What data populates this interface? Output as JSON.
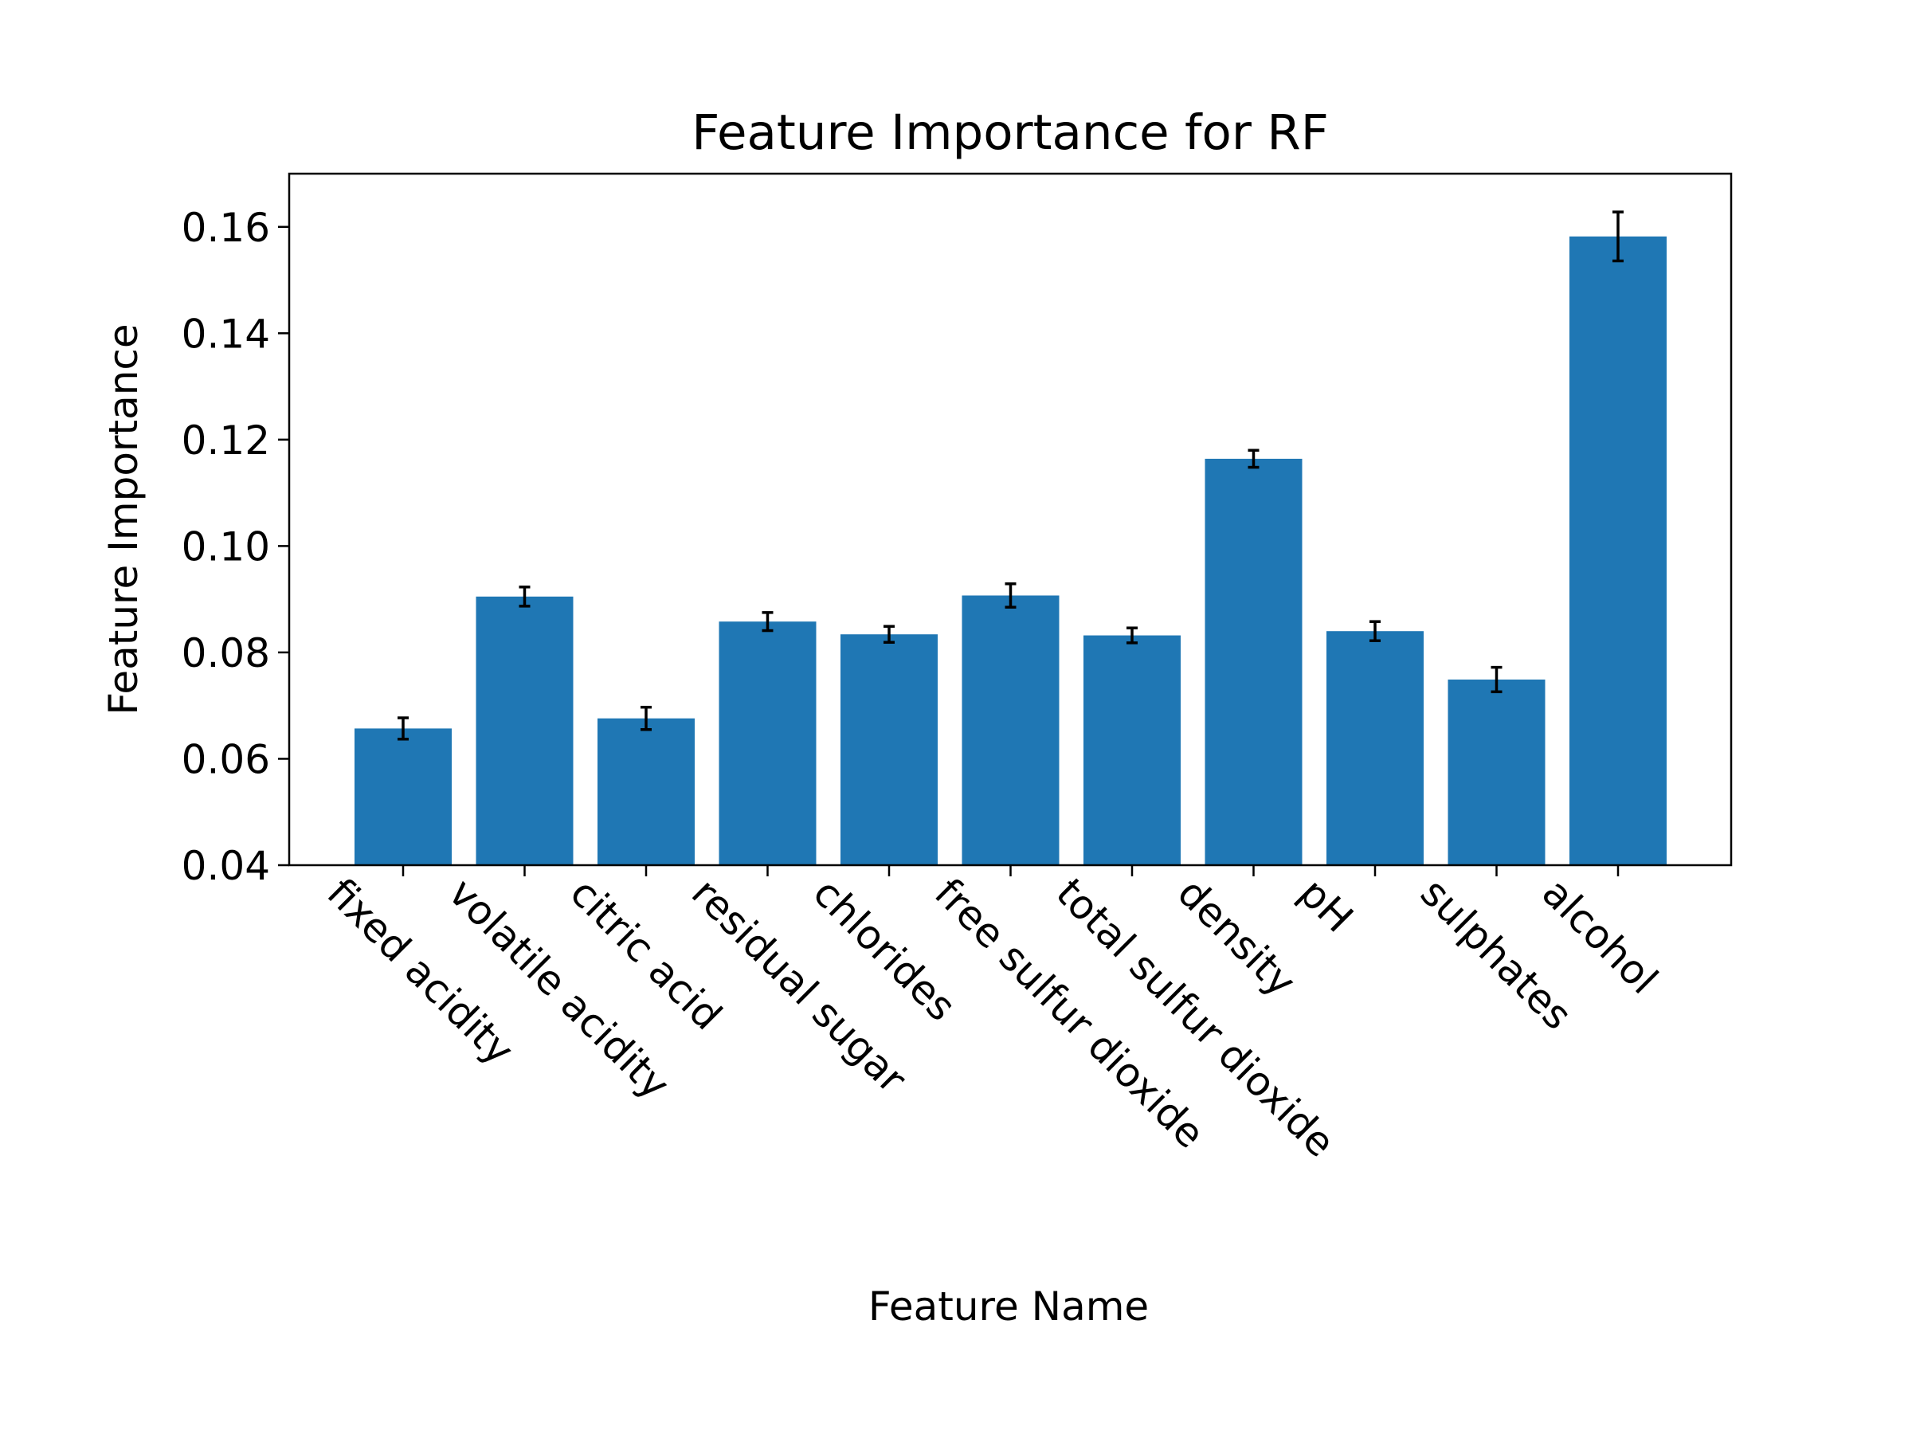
{
  "chart_data": {
    "type": "bar",
    "title": "Feature Importance for RF",
    "xlabel": "Feature Name",
    "ylabel": "Feature Importance",
    "categories": [
      "fixed acidity",
      "volatile acidity",
      "citric acid",
      "residual sugar",
      "chlorides",
      "free sulfur dioxide",
      "total sulfur dioxide",
      "density",
      "pH",
      "sulphates",
      "alcohol"
    ],
    "values": [
      0.0657,
      0.0905,
      0.0676,
      0.0858,
      0.0834,
      0.0907,
      0.0832,
      0.1164,
      0.084,
      0.0749,
      0.1582
    ],
    "errors": [
      0.002,
      0.0018,
      0.0021,
      0.0017,
      0.0015,
      0.0022,
      0.0014,
      0.0016,
      0.0018,
      0.0023,
      0.0046
    ],
    "ylim": [
      0.04,
      0.17
    ],
    "yticks": [
      0.04,
      0.06,
      0.08,
      0.1,
      0.12,
      0.14,
      0.16
    ],
    "ytick_labels": [
      "0.04",
      "0.06",
      "0.08",
      "0.10",
      "0.12",
      "0.14",
      "0.16"
    ],
    "bar_color": "#1f77b4",
    "error_color": "#000000",
    "grid": false,
    "legend": "none"
  }
}
